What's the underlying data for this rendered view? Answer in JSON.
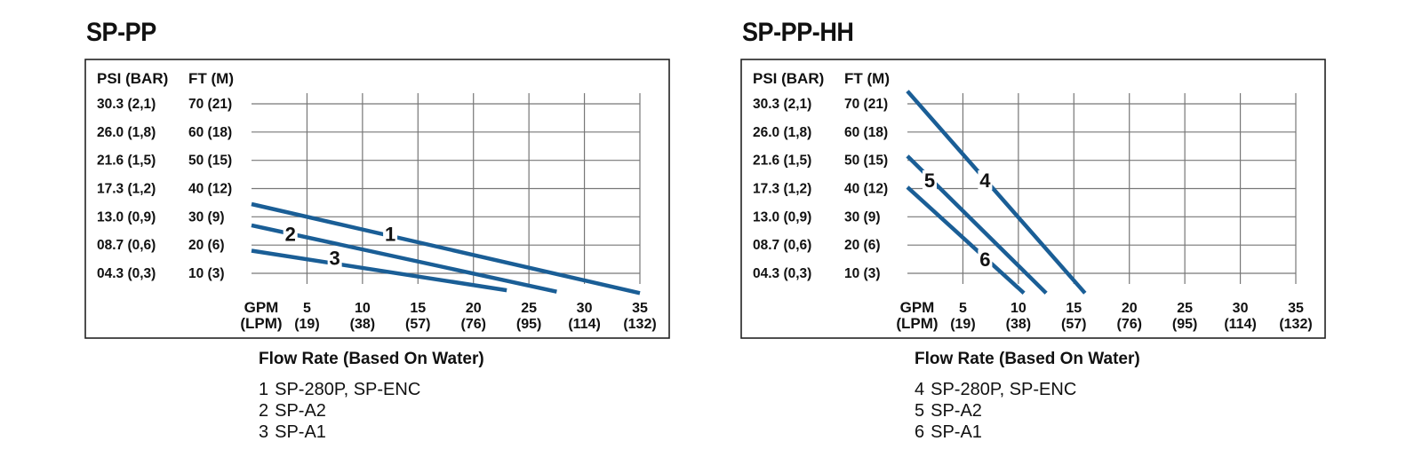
{
  "colors": {
    "line": "#1a5e96",
    "grid": "#777777",
    "frame": "#222222"
  },
  "chart_data": [
    {
      "type": "line",
      "title": "SP-PP",
      "y_header_left": "PSI (BAR)",
      "y_header_right": "FT (M)",
      "y_ticks": [
        {
          "value": 70,
          "psi": "30.3 (2,1)",
          "ft": "70 (21)"
        },
        {
          "value": 60,
          "psi": "26.0 (1,8)",
          "ft": "60 (18)"
        },
        {
          "value": 50,
          "psi": "21.6 (1,5)",
          "ft": "50 (15)"
        },
        {
          "value": 40,
          "psi": "17.3 (1,2)",
          "ft": "40 (12)"
        },
        {
          "value": 30,
          "psi": "13.0 (0,9)",
          "ft": "30 (9)"
        },
        {
          "value": 20,
          "psi": "08.7 (0,6)",
          "ft": "20 (6)"
        },
        {
          "value": 10,
          "psi": "04.3 (0,3)",
          "ft": "10 (3)"
        }
      ],
      "x_unit_top": "GPM",
      "x_unit_bottom": "(LPM)",
      "x_ticks": [
        {
          "value": 5,
          "gpm": "5",
          "lpm": "(19)"
        },
        {
          "value": 10,
          "gpm": "10",
          "lpm": "(38)"
        },
        {
          "value": 15,
          "gpm": "15",
          "lpm": "(57)"
        },
        {
          "value": 20,
          "gpm": "20",
          "lpm": "(76)"
        },
        {
          "value": 25,
          "gpm": "25",
          "lpm": "(95)"
        },
        {
          "value": 30,
          "gpm": "30",
          "lpm": "(114)"
        },
        {
          "value": 35,
          "gpm": "35",
          "lpm": "(132)"
        }
      ],
      "xlim": [
        0,
        35
      ],
      "ylim": [
        0,
        70
      ],
      "grid": true,
      "xlabel": "Flow Rate (Based On Water)",
      "series": [
        {
          "name": "1",
          "x": [
            0,
            35
          ],
          "y": [
            34.5,
            3
          ],
          "label_at": [
            12.5,
            24
          ]
        },
        {
          "name": "2",
          "x": [
            0,
            27.5
          ],
          "y": [
            27,
            3.5
          ],
          "label_at": [
            3.5,
            24
          ]
        },
        {
          "name": "3",
          "x": [
            0,
            23
          ],
          "y": [
            18,
            4
          ],
          "label_at": [
            7.5,
            15.5
          ]
        }
      ],
      "legend": [
        {
          "num": "1",
          "label": "SP-280P, SP-ENC"
        },
        {
          "num": "2",
          "label": "SP-A2"
        },
        {
          "num": "3",
          "label": "SP-A1"
        }
      ]
    },
    {
      "type": "line",
      "title": "SP-PP-HH",
      "y_header_left": "PSI (BAR)",
      "y_header_right": "FT (M)",
      "y_ticks": [
        {
          "value": 70,
          "psi": "30.3 (2,1)",
          "ft": "70 (21)"
        },
        {
          "value": 60,
          "psi": "26.0 (1,8)",
          "ft": "60 (18)"
        },
        {
          "value": 50,
          "psi": "21.6 (1,5)",
          "ft": "50 (15)"
        },
        {
          "value": 40,
          "psi": "17.3 (1,2)",
          "ft": "40 (12)"
        },
        {
          "value": 30,
          "psi": "13.0 (0,9)",
          "ft": "30 (9)"
        },
        {
          "value": 20,
          "psi": "08.7 (0,6)",
          "ft": "20 (6)"
        },
        {
          "value": 10,
          "psi": "04.3 (0,3)",
          "ft": "10 (3)"
        }
      ],
      "x_unit_top": "GPM",
      "x_unit_bottom": "(LPM)",
      "x_ticks": [
        {
          "value": 5,
          "gpm": "5",
          "lpm": "(19)"
        },
        {
          "value": 10,
          "gpm": "10",
          "lpm": "(38)"
        },
        {
          "value": 15,
          "gpm": "15",
          "lpm": "(57)"
        },
        {
          "value": 20,
          "gpm": "20",
          "lpm": "(76)"
        },
        {
          "value": 25,
          "gpm": "25",
          "lpm": "(95)"
        },
        {
          "value": 30,
          "gpm": "30",
          "lpm": "(114)"
        },
        {
          "value": 35,
          "gpm": "35",
          "lpm": "(132)"
        }
      ],
      "xlim": [
        0,
        35
      ],
      "ylim": [
        0,
        70
      ],
      "grid": true,
      "xlabel": "Flow Rate (Based On Water)",
      "series": [
        {
          "name": "4",
          "x": [
            0,
            16
          ],
          "y": [
            74.5,
            3
          ],
          "label_at": [
            7,
            43
          ]
        },
        {
          "name": "5",
          "x": [
            0,
            12.5
          ],
          "y": [
            51.5,
            3
          ],
          "label_at": [
            2,
            43
          ]
        },
        {
          "name": "6",
          "x": [
            0,
            10.5
          ],
          "y": [
            40.5,
            3
          ],
          "label_at": [
            7,
            15
          ]
        }
      ],
      "legend": [
        {
          "num": "4",
          "label": "SP-280P, SP-ENC"
        },
        {
          "num": "5",
          "label": "SP-A2"
        },
        {
          "num": "6",
          "label": "SP-A1"
        }
      ]
    }
  ]
}
